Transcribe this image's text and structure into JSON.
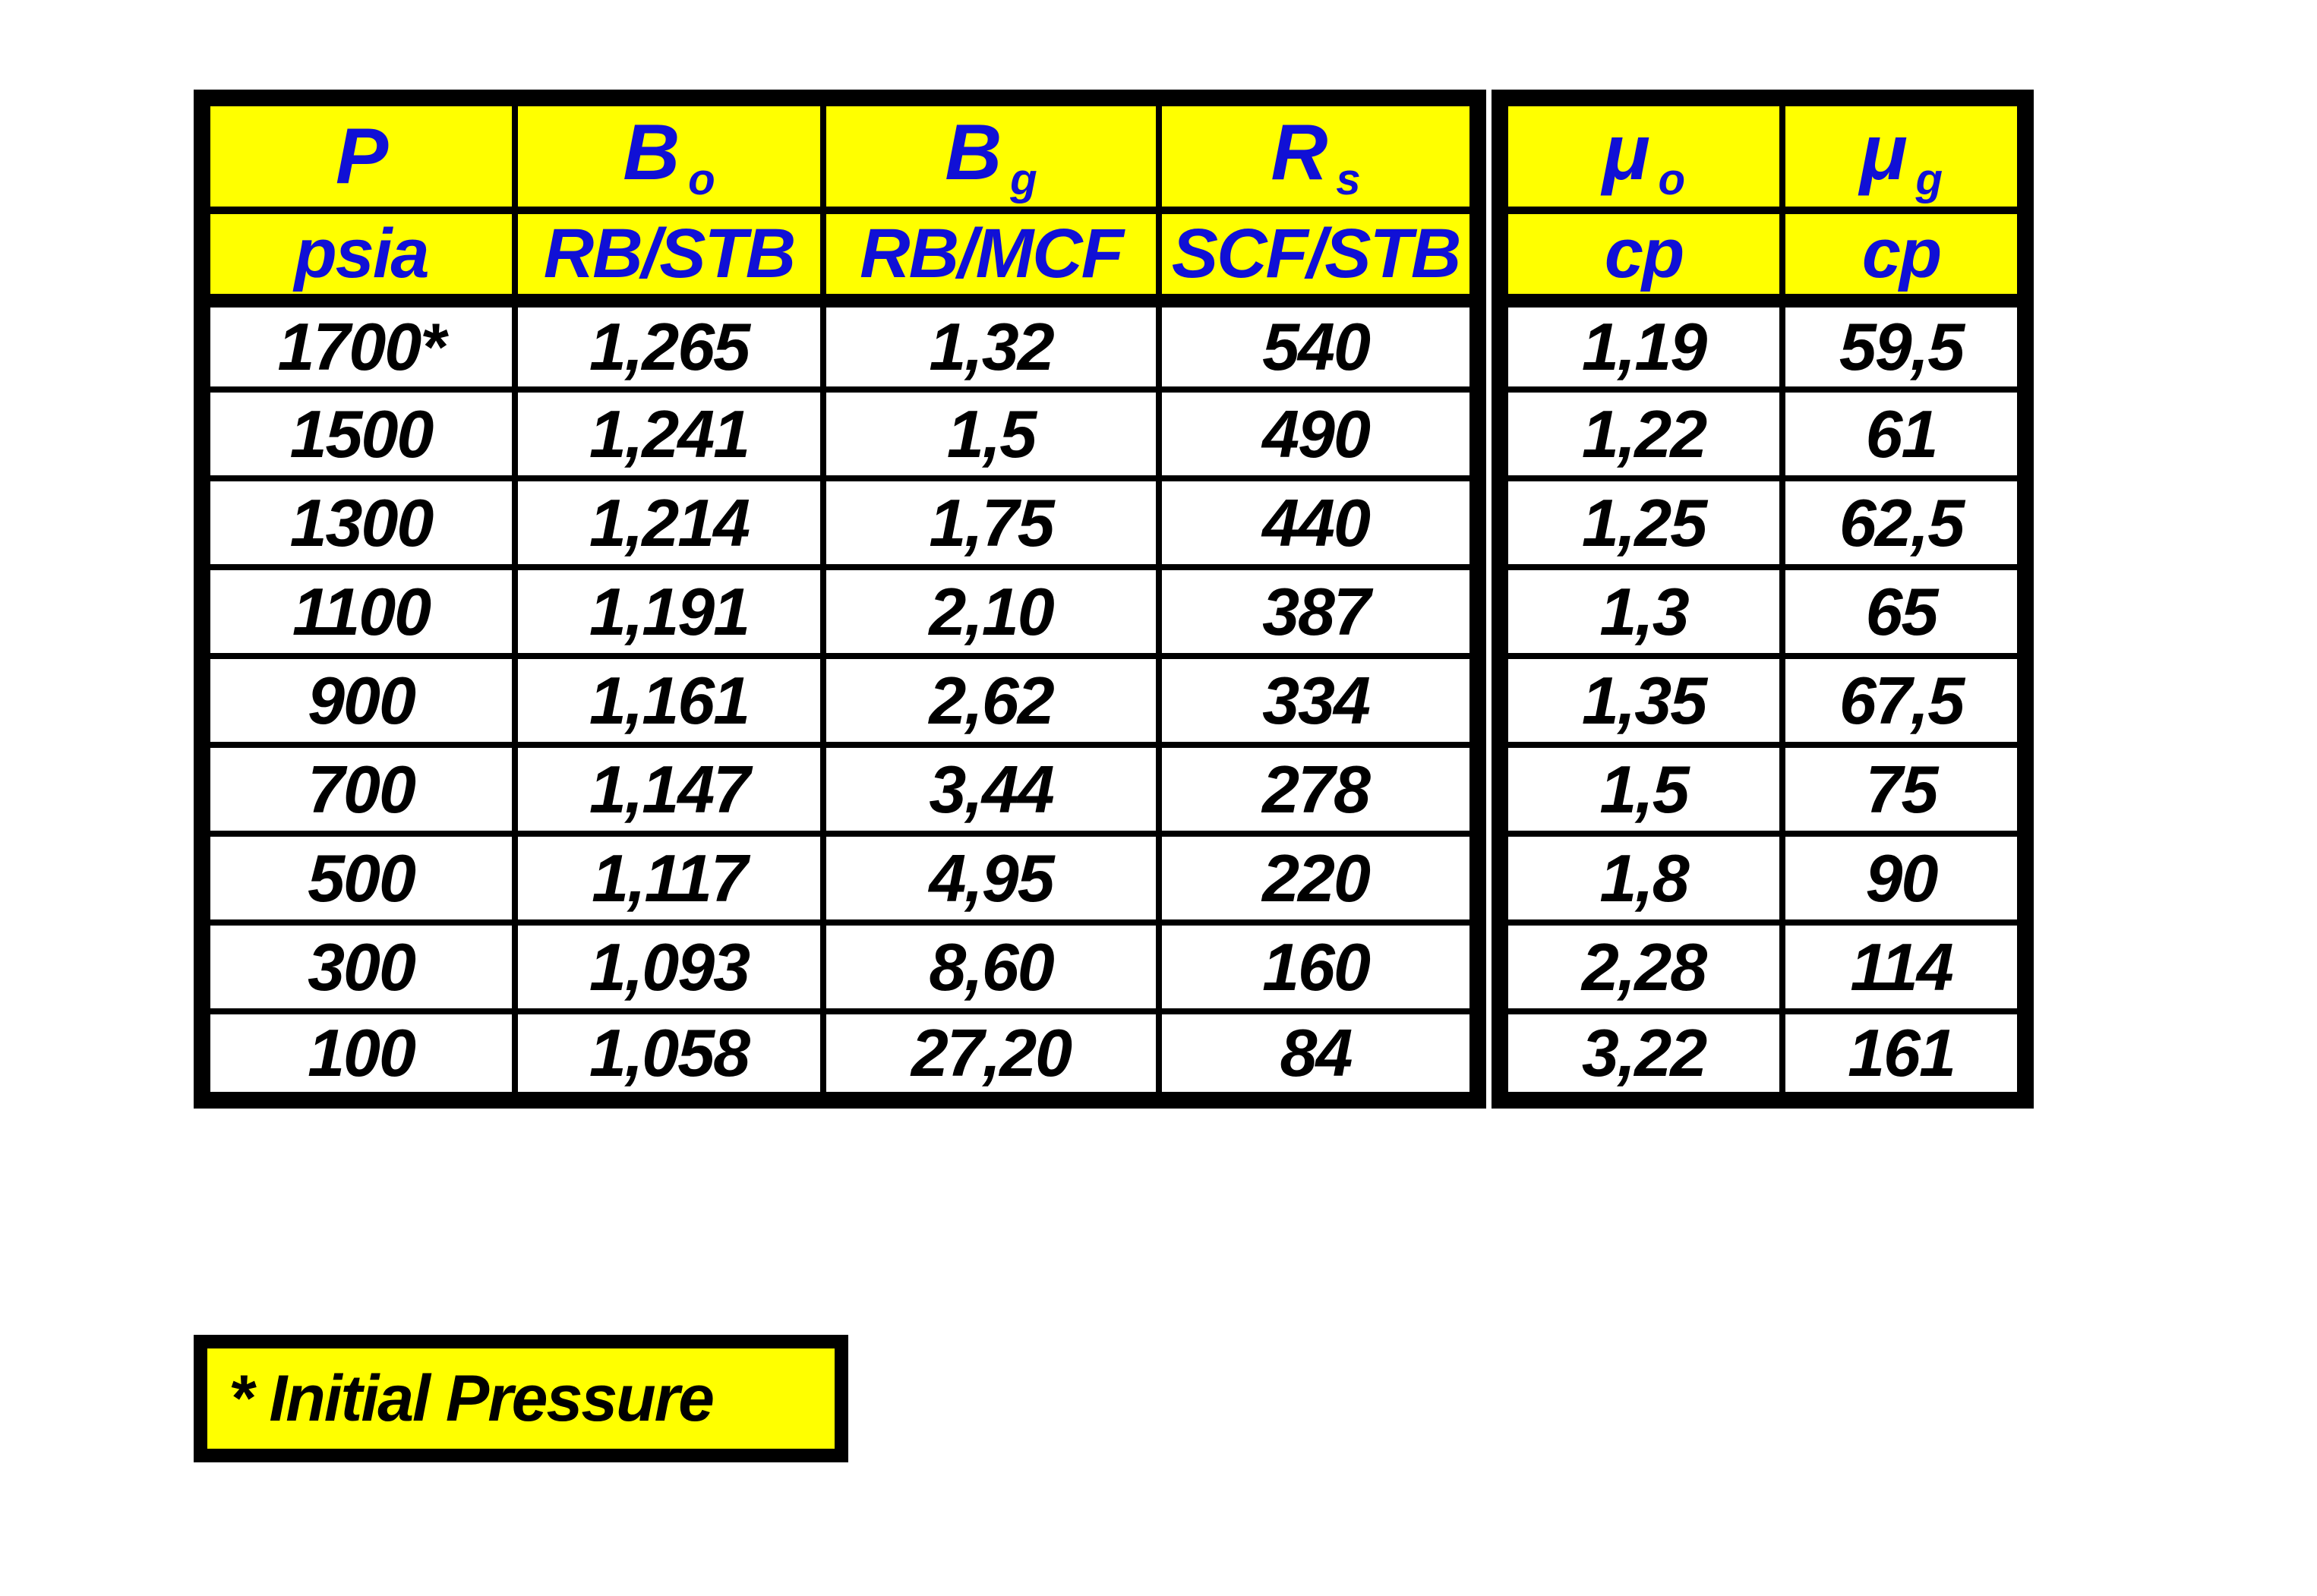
{
  "colors": {
    "header_bg": "#ffff00",
    "header_text": "#1010d6",
    "body_text": "#000000",
    "grid": "#000000",
    "page_bg": "#ffffff"
  },
  "chart_data": {
    "type": "table",
    "title": "",
    "legend_position": "none",
    "grid": true,
    "columns": [
      {
        "symbol": "P",
        "subscript": "",
        "unit": "psia"
      },
      {
        "symbol": "B",
        "subscript": "o",
        "unit": "RB/STB"
      },
      {
        "symbol": "B",
        "subscript": "g",
        "unit": "RB/MCF"
      },
      {
        "symbol": "R",
        "subscript": "s",
        "unit": "SCF/STB"
      },
      {
        "symbol": "μ",
        "subscript": "o",
        "unit": "cp"
      },
      {
        "symbol": "μ",
        "subscript": "g",
        "unit": "cp"
      }
    ],
    "rows": [
      [
        "1700*",
        "1,265",
        "1,32",
        "540",
        "1,19",
        "59,5"
      ],
      [
        "1500",
        "1,241",
        "1,5",
        "490",
        "1,22",
        "61"
      ],
      [
        "1300",
        "1,214",
        "1,75",
        "440",
        "1,25",
        "62,5"
      ],
      [
        "1100",
        "1,191",
        "2,10",
        "387",
        "1,3",
        "65"
      ],
      [
        "900",
        "1,161",
        "2,62",
        "334",
        "1,35",
        "67,5"
      ],
      [
        "700",
        "1,147",
        "3,44",
        "278",
        "1,5",
        "75"
      ],
      [
        "500",
        "1,117",
        "4,95",
        "220",
        "1,8",
        "90"
      ],
      [
        "300",
        "1,093",
        "8,60",
        "160",
        "2,28",
        "114"
      ],
      [
        "100",
        "1,058",
        "27,20",
        "84",
        "3,22",
        "161"
      ]
    ]
  },
  "footnote": {
    "text": "* Initial Pressure"
  }
}
